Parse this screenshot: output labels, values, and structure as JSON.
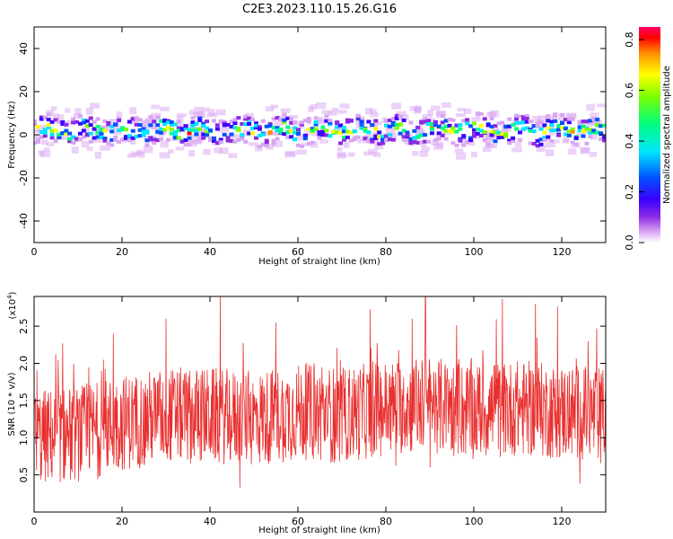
{
  "title": "C2E3.2023.110.15.26.G16",
  "chart_data": [
    {
      "type": "heatmap",
      "xlabel": "Height of straight line (km)",
      "ylabel": "Frequency (Hz)",
      "xlim": [
        0,
        130
      ],
      "ylim": [
        -50,
        50
      ],
      "xticks": [
        0,
        20,
        40,
        60,
        80,
        100,
        120
      ],
      "yticks": [
        -40,
        -20,
        0,
        20,
        40
      ],
      "band_center_hz": 2,
      "band_halfwidth_hz": 6,
      "colorbar": {
        "label": "Normalized spectral amplitude",
        "range": [
          0.0,
          0.85
        ],
        "ticks": [
          0.0,
          0.2,
          0.4,
          0.6,
          0.8
        ],
        "colormap": [
          "#ffffff",
          "#d9a6f2",
          "#8a2be2",
          "#3b00ff",
          "#0050ff",
          "#00e5ff",
          "#00ff7f",
          "#7fff00",
          "#ffff00",
          "#ff8c00",
          "#ff0000",
          "#ff0066"
        ]
      },
      "grid": false
    },
    {
      "type": "line",
      "xlabel": "Height of straight line (km)",
      "ylabel": "SNR (10 * v/v)",
      "y_multiplier": "(x10",
      "y_multiplier_exp": "4",
      "xlim": [
        0,
        130
      ],
      "ylim": [
        0,
        2.9
      ],
      "xticks": [
        0,
        20,
        40,
        60,
        80,
        100,
        120
      ],
      "yticks": [
        0.5,
        1.0,
        1.5,
        2.0,
        2.5
      ],
      "ytick_labels": [
        "0.5",
        "1.0",
        "1.5",
        "2.0",
        "2.5"
      ],
      "color": "#e8302f",
      "trend": {
        "x": [
          0,
          10,
          20,
          30,
          40,
          50,
          60,
          70,
          80,
          90,
          100,
          110,
          120,
          130
        ],
        "y": [
          1.0,
          1.05,
          1.2,
          1.3,
          1.3,
          1.25,
          1.35,
          1.3,
          1.4,
          1.45,
          1.35,
          1.4,
          1.35,
          1.3
        ]
      },
      "peaks": [
        {
          "x": 18,
          "y": 2.4
        },
        {
          "x": 30,
          "y": 2.6
        },
        {
          "x": 55,
          "y": 2.55
        },
        {
          "x": 86,
          "y": 2.6
        },
        {
          "x": 89,
          "y": 2.9
        },
        {
          "x": 114,
          "y": 2.8
        },
        {
          "x": 126,
          "y": 2.3
        }
      ],
      "grid": false
    }
  ]
}
